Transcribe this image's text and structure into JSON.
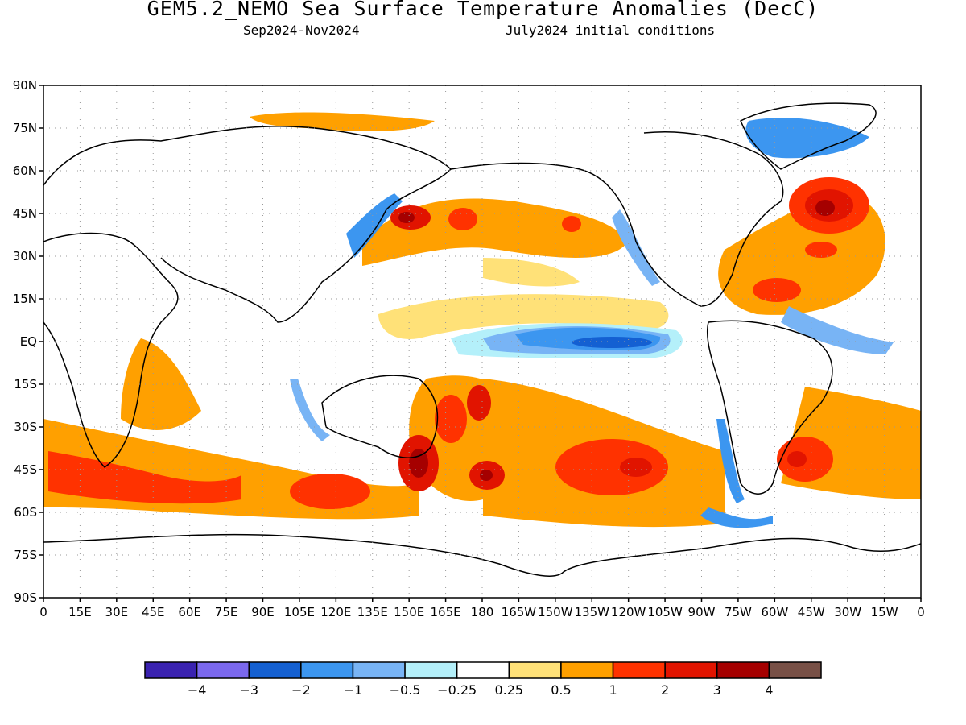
{
  "header": {
    "title": "GEM5.2_NEMO Sea Surface Temperature Anomalies (DecC)",
    "period": "Sep2024-Nov2024",
    "init": "July2024 initial conditions"
  },
  "axes": {
    "lat_labels": [
      "90N",
      "75N",
      "60N",
      "45N",
      "30N",
      "15N",
      "EQ",
      "15S",
      "30S",
      "45S",
      "60S",
      "75S",
      "90S"
    ],
    "lon_labels": [
      "0",
      "15E",
      "30E",
      "45E",
      "60E",
      "75E",
      "90E",
      "105E",
      "120E",
      "135E",
      "150E",
      "165E",
      "180",
      "165W",
      "150W",
      "135W",
      "120W",
      "105W",
      "90W",
      "75W",
      "60W",
      "45W",
      "30W",
      "15W",
      "0"
    ]
  },
  "colorbar": {
    "colors": [
      "#3a22b0",
      "#7b68ee",
      "#1460d2",
      "#3c96f0",
      "#78b4f5",
      "#b4f0fa",
      "#ffffff",
      "#ffe178",
      "#ffa000",
      "#ff3200",
      "#e11400",
      "#a50000",
      "#785046"
    ],
    "labels": [
      "-4",
      "-3",
      "-2",
      "-1",
      "-0.5",
      "-0.25",
      "0.25",
      "0.5",
      "1",
      "2",
      "3",
      "4"
    ]
  },
  "anomaly_regions": [
    {
      "name": "east-equatorial-pacific-cool",
      "color": "#3c96f0"
    },
    {
      "name": "north-atlantic-warm",
      "color": "#e11400"
    },
    {
      "name": "southern-ocean-warm-band",
      "color": "#ffa000"
    },
    {
      "name": "south-pacific-warm",
      "color": "#ff3200"
    },
    {
      "name": "tasman-sea-warm",
      "color": "#a50000"
    }
  ]
}
